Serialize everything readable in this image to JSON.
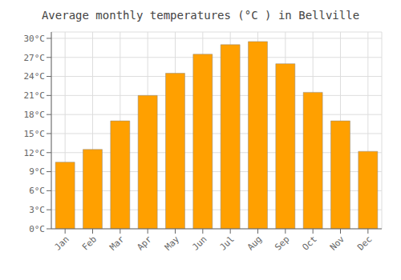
{
  "chart_data": {
    "type": "bar",
    "title": "Average monthly temperatures (°C ) in Bellville",
    "categories": [
      "Jan",
      "Feb",
      "Mar",
      "Apr",
      "May",
      "Jun",
      "Jul",
      "Aug",
      "Sep",
      "Oct",
      "Nov",
      "Dec"
    ],
    "values": [
      10.5,
      12.5,
      17.0,
      21.0,
      24.5,
      27.5,
      29.0,
      29.5,
      26.0,
      21.5,
      17.0,
      12.2
    ],
    "color": "#FFA000",
    "ylim": [
      0,
      31
    ],
    "yticks": [
      {
        "value": 0,
        "label": "0°C"
      },
      {
        "value": 3,
        "label": "3°C"
      },
      {
        "value": 6,
        "label": "6°C"
      },
      {
        "value": 9,
        "label": "9°C"
      },
      {
        "value": 12,
        "label": "12°C"
      },
      {
        "value": 15,
        "label": "15°C"
      },
      {
        "value": 18,
        "label": "18°C"
      },
      {
        "value": 21,
        "label": "21°C"
      },
      {
        "value": 24,
        "label": "24°C"
      },
      {
        "value": 27,
        "label": "27°C"
      },
      {
        "value": 30,
        "label": "30°C"
      }
    ],
    "grid": true
  }
}
